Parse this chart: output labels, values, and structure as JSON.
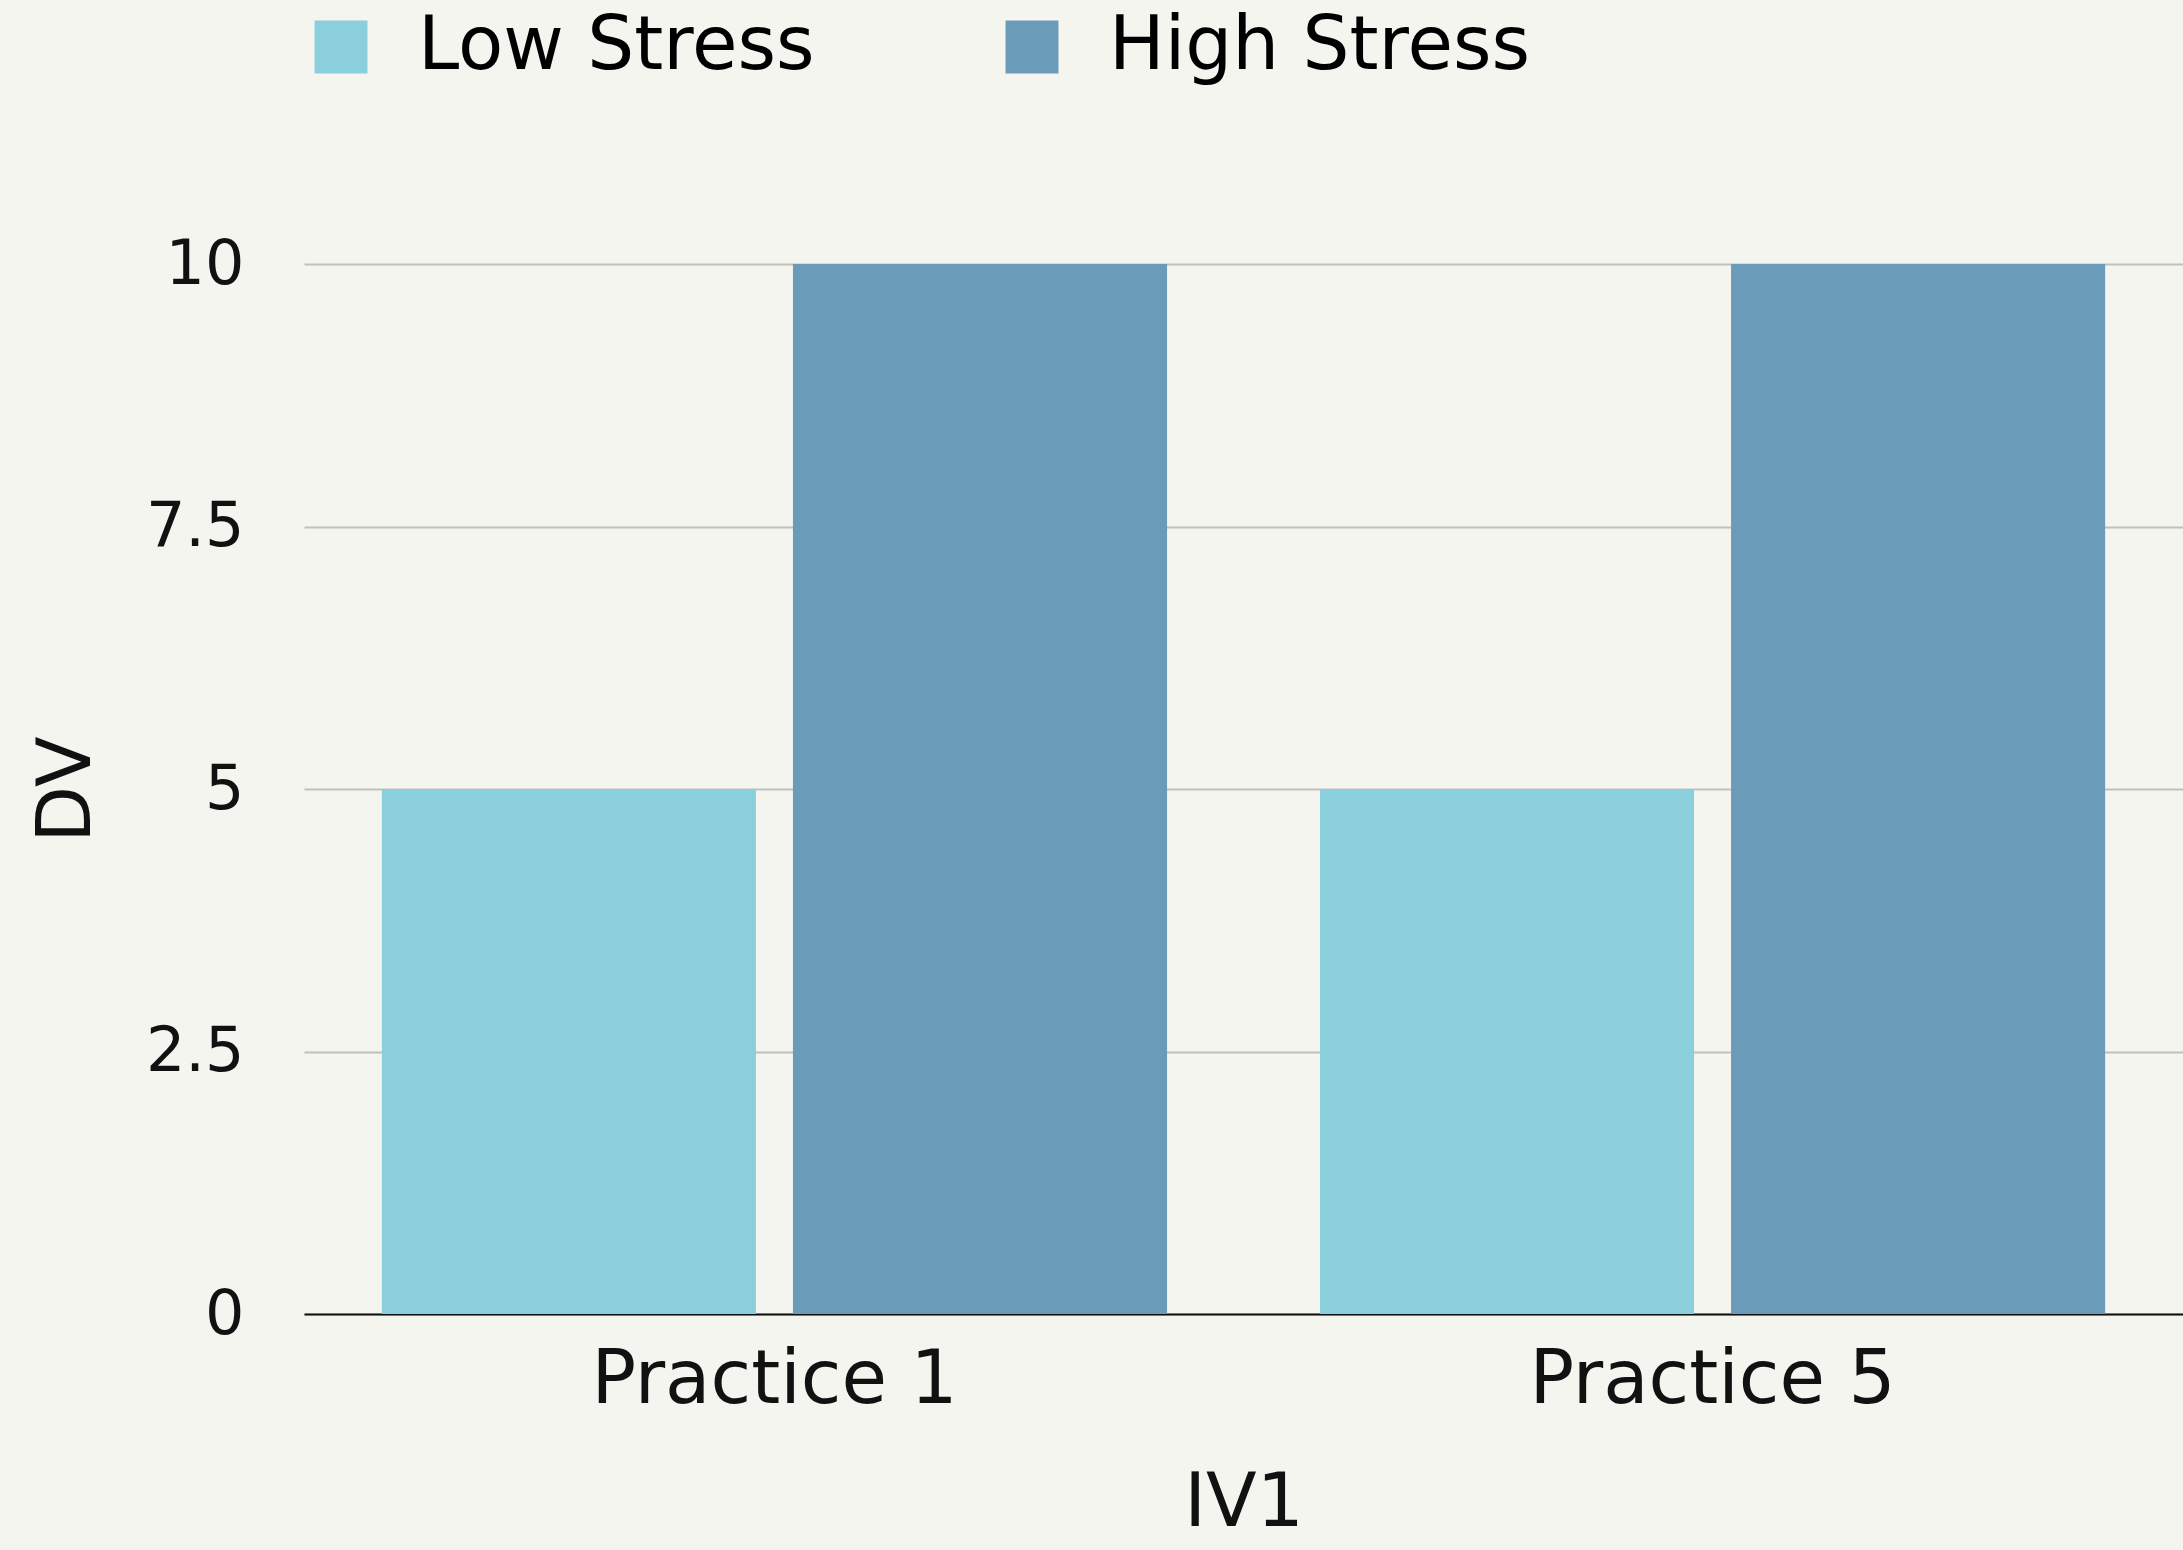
{
  "chart_data": {
    "type": "bar",
    "xlabel": "IV1",
    "ylabel": "DV",
    "categories": [
      "Practice 1",
      "Practice 5"
    ],
    "series": [
      {
        "name": "Low Stress",
        "color": "#8ccfdc",
        "values": [
          5,
          5
        ]
      },
      {
        "name": "High Stress",
        "color": "#6a9bb8",
        "values": [
          10,
          10
        ]
      }
    ],
    "ylim": [
      0,
      10
    ],
    "yticks": [
      0,
      2.5,
      5,
      7.5,
      10
    ],
    "grid": "y",
    "legend": "top"
  }
}
